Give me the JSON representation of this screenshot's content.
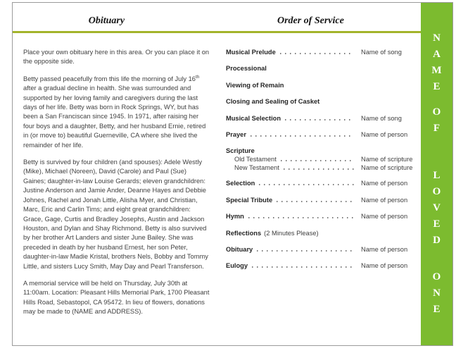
{
  "header": {
    "left_title": "Obituary",
    "right_title": "Order of Service"
  },
  "obituary": {
    "p1": "Place your own obituary here in this area. Or you can place it on the opposite side.",
    "p2_before_sup": "Betty passed peacefully from this life the morning of July 16",
    "p2_sup": "th",
    "p2_after_sup": " after a gradual decline in health.  She was surrounded and supported by her loving family and caregivers during the last days of her life.  Betty was born in Rock Springs, WY, but has been a San Franciscan since 1945.  In 1971, after raising her four boys and a daughter, Betty, and her husband Ernie, retired in (or move to) beautiful Guerneville, CA where she lived the remainder of her life.",
    "p3": "Betty is survived by four children (and spouses): Adele Westly (Mike), Michael (Noreen), David (Carole) and Paul (Sue) Gaines;  daughter-in-law Louise Gerards;  eleven grandchildren: Justine Anderson and Jamie Ander, Deanne Hayes and Debbie Johnes, Rachel and Jonah Little, Alisha Myer, and Christian, Marc, Eric and Carlin Tims;  and eight great grandchildren: Grace, Gage, Curtis and Bradley Josephs, Austin and Jackson Houston, and Dylan and Shay Richmond.  Betty is also survived by her brother Art Landers and sister June Bailey.  She was preceded in death by her husband Ernest, her son Peter, daughter-in-law Madie Kristal, brothers Nels, Bobby and Tommy Little, and sisters Lucy Smith, May Day and Pearl Transferson.",
    "p4": "A memorial service will be held on Thursday, July 30th at 11:00am.  Location:  Pleasant Hills Memorial Park, 1700 Pleasant Hills Road, Sebastopol, CA 95472.  In lieu of flowers, donations may be made to (NAME and ADDRESS)."
  },
  "order": {
    "items": [
      {
        "label": "Musical Prelude",
        "value": "Name of song"
      },
      {
        "label": "Processional"
      },
      {
        "label": "Viewing of Remain"
      },
      {
        "label": "Closing and Sealing of Casket"
      },
      {
        "label": "Musical Selection",
        "value": "Name of song"
      },
      {
        "label": "Prayer",
        "value": "Name of person"
      },
      {
        "label": "Scripture",
        "sub": [
          {
            "label": "Old Testament",
            "value": "Name of scripture"
          },
          {
            "label": "New Testament",
            "value": "Name of scripture"
          }
        ]
      },
      {
        "label": "Selection",
        "value": "Name of person"
      },
      {
        "label": "Special Tribute",
        "value": "Name of person"
      },
      {
        "label": "Hymn",
        "value": "Name of person"
      },
      {
        "label": "Reflections",
        "note": "(2 Minutes Please)"
      },
      {
        "label": "Obituary",
        "value": "Name of person"
      },
      {
        "label": "Eulogy",
        "value": "Name of person"
      }
    ]
  },
  "sidebar": {
    "text": "NAME OF LOVED ONE",
    "letters": [
      "N",
      "A",
      "M",
      "E",
      "O",
      "F",
      "L",
      "O",
      "V",
      "E",
      "D",
      "O",
      "N",
      "E"
    ]
  },
  "colors": {
    "rule_green": "#a3b42b",
    "sidebar_green": "#7cbb2f",
    "body_text": "#3f3f3f"
  }
}
